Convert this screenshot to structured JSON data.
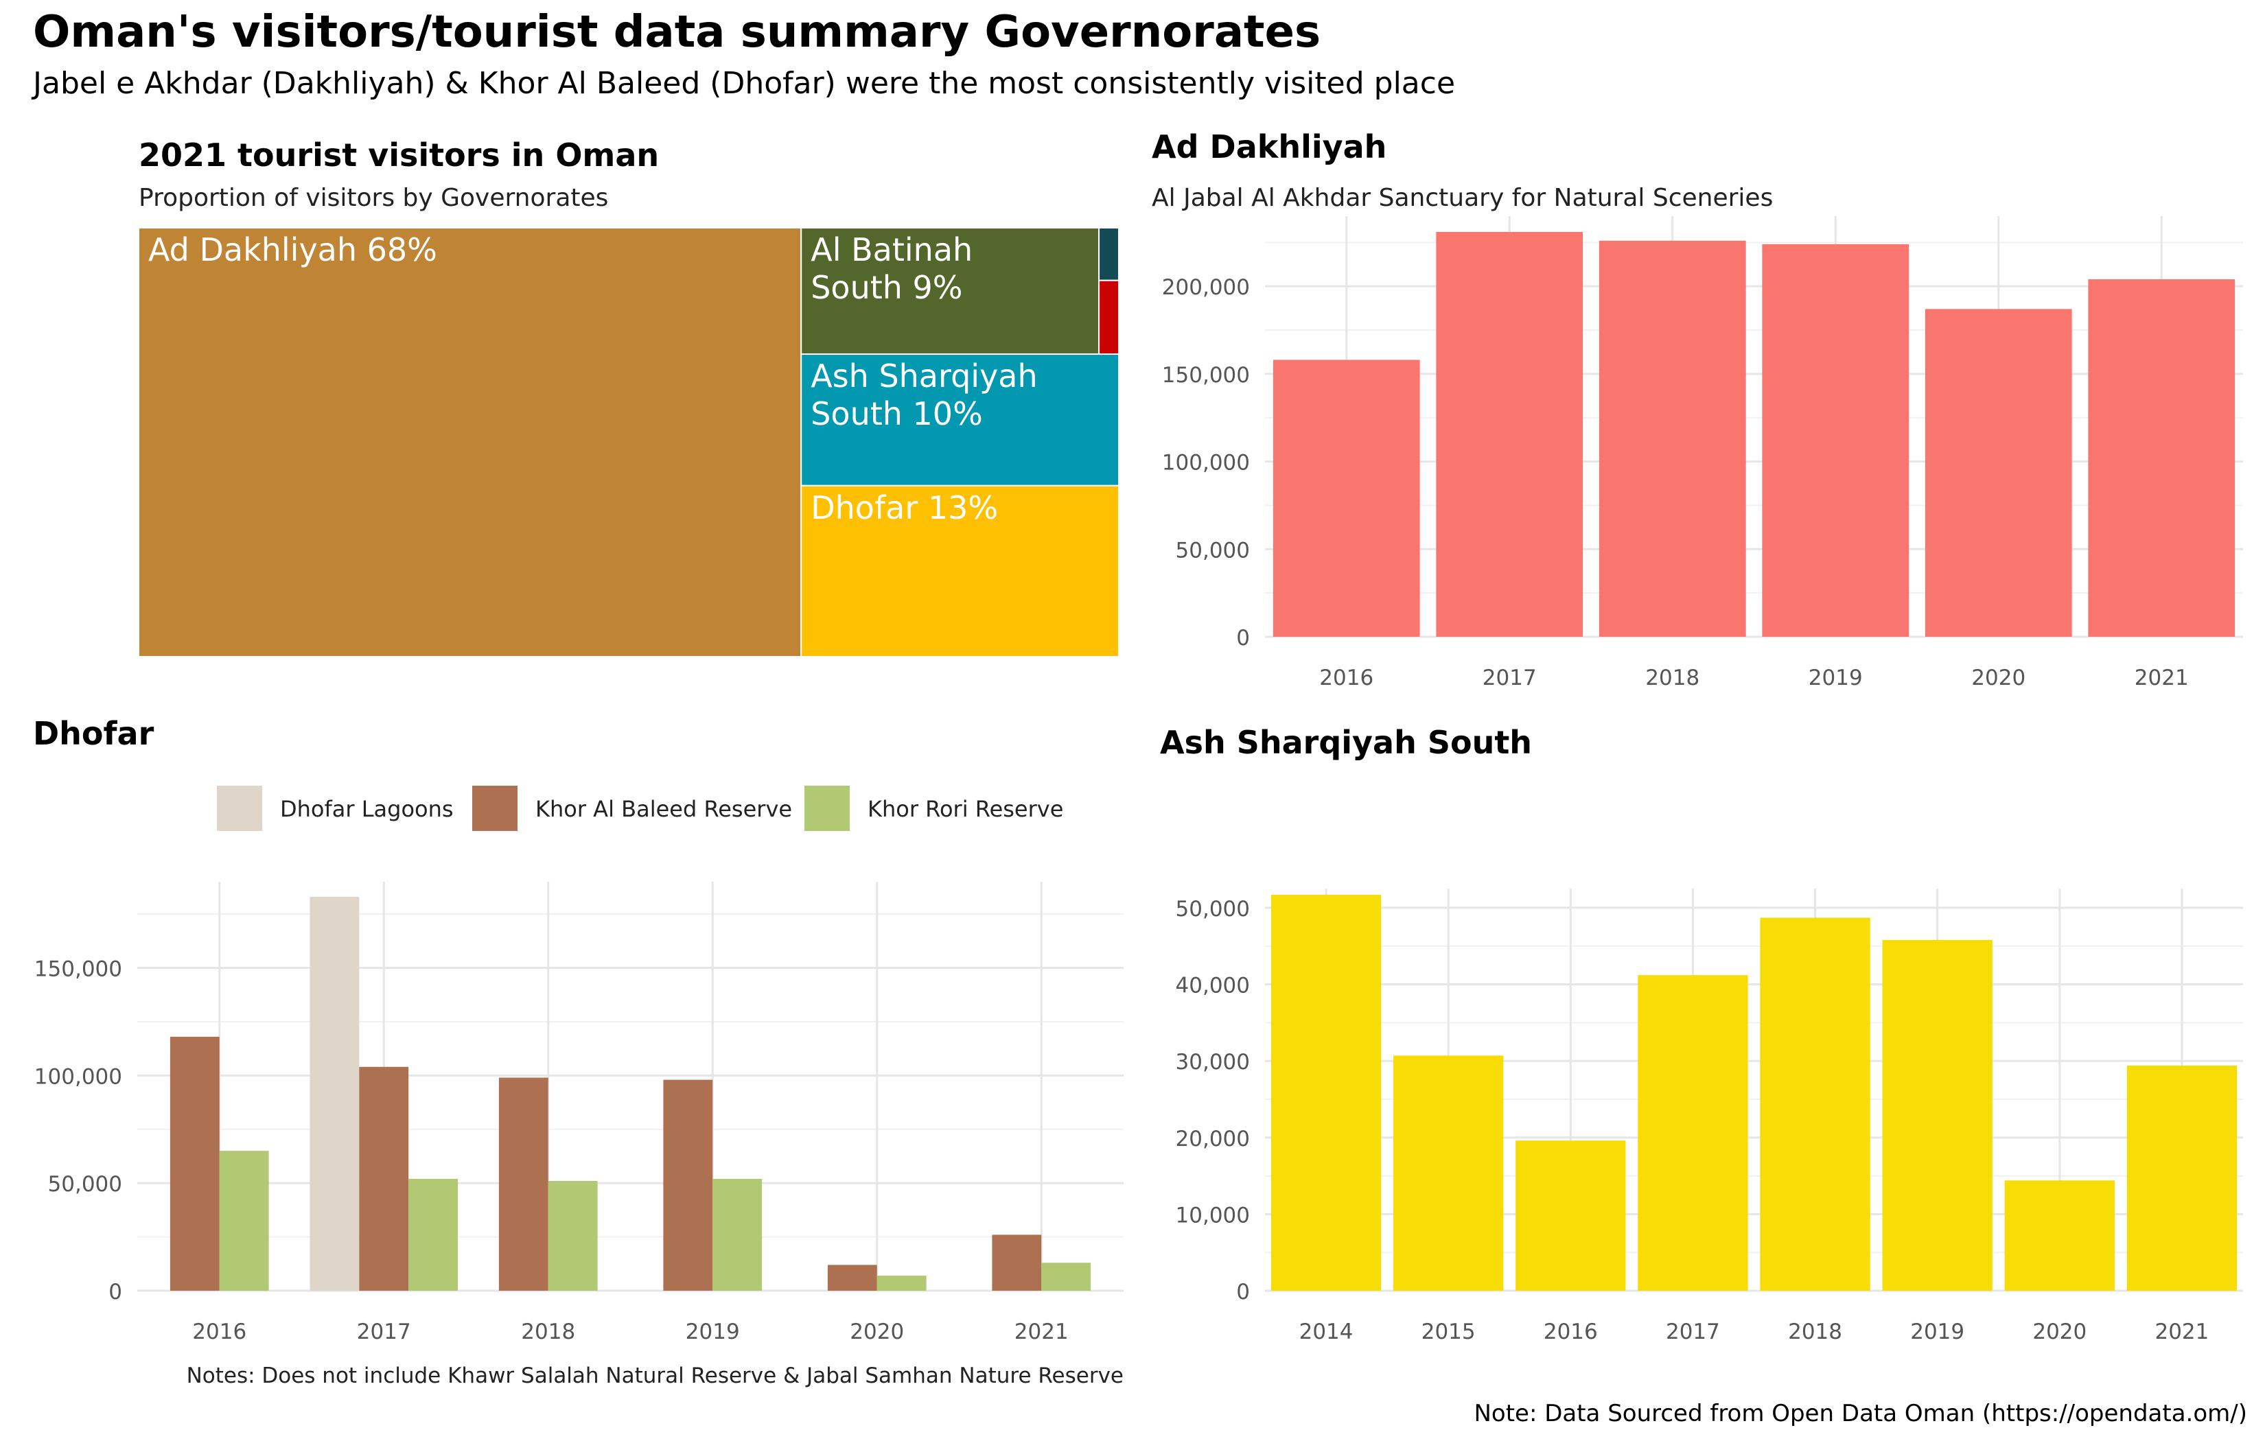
{
  "title": "Oman's visitors/tourist data summary Governorates",
  "subtitle": "Jabel e Akhdar (Dakhliyah) & Khor Al Baleed (Dhofar) were the most consistently visited place",
  "caption": "Note: Data Sourced from Open Data Oman (https://opendata.om/)",
  "chart_data": [
    {
      "type": "treemap",
      "title": "2021 tourist visitors in Oman",
      "subtitle": "Proportion of visitors by Governorates",
      "items": [
        {
          "label": "Ad Dakhliyah 68%",
          "value": 68,
          "color": "#BF8434"
        },
        {
          "label": "Al Batinah South 9%",
          "label_lines": [
            "Al Batinah",
            "South 9%"
          ],
          "value": 9,
          "color": "#53672C"
        },
        {
          "label": "Ash Sharqiyah South 10%",
          "label_lines": [
            "Ash Sharqiyah",
            "South 10%"
          ],
          "value": 10,
          "color": "#0299B0"
        },
        {
          "label": "Dhofar 13%",
          "value": 13,
          "color": "#FEC001"
        },
        {
          "label": "",
          "value": 0.25,
          "color": "#124B56"
        },
        {
          "label": "",
          "value": 0.35,
          "color": "#CC0202"
        }
      ]
    },
    {
      "type": "bar",
      "title": "Ad Dakhliyah",
      "subtitle": "Al Jabal Al Akhdar Sanctuary for Natural Sceneries",
      "categories": [
        "2016",
        "2017",
        "2018",
        "2019",
        "2020",
        "2021"
      ],
      "values": [
        158000,
        231000,
        226000,
        224000,
        187000,
        204000
      ],
      "ylim": [
        0,
        240000
      ],
      "yticks": [
        0,
        50000,
        100000,
        150000,
        200000
      ],
      "ytick_labels": [
        "0",
        "50,000",
        "100,000",
        "150,000",
        "200,000"
      ],
      "color": "#F8766D",
      "grid": true
    },
    {
      "type": "bar",
      "title": "Dhofar",
      "categories": [
        "2016",
        "2017",
        "2018",
        "2019",
        "2020",
        "2021"
      ],
      "series": [
        {
          "name": "Dhofar Lagoons",
          "color": "#DFD5C8",
          "values": [
            null,
            183000,
            null,
            null,
            null,
            null
          ]
        },
        {
          "name": "Khor Al Baleed Reserve",
          "color": "#AD7152",
          "values": [
            118000,
            104000,
            99000,
            98000,
            12000,
            26000
          ]
        },
        {
          "name": "Khor Rori Reserve",
          "color": "#B0C972",
          "values": [
            65000,
            52000,
            51000,
            52000,
            7000,
            13000
          ]
        }
      ],
      "ylim": [
        0,
        190000
      ],
      "yticks": [
        0,
        50000,
        100000,
        150000
      ],
      "ytick_labels": [
        "0",
        "50,000",
        "100,000",
        "150,000"
      ],
      "legend_position": "top",
      "caption": "Notes: Does not include Khawr Salalah Natural Reserve & Jabal Samhan Nature Reserve",
      "grid": true
    },
    {
      "type": "bar",
      "title": "Ash Sharqiyah South",
      "categories": [
        "2014",
        "2015",
        "2016",
        "2017",
        "2018",
        "2019",
        "2020",
        "2021"
      ],
      "values": [
        51700,
        30700,
        19600,
        41200,
        48700,
        45800,
        14400,
        29400
      ],
      "ylim": [
        0,
        52500
      ],
      "yticks": [
        0,
        10000,
        20000,
        30000,
        40000,
        50000
      ],
      "ytick_labels": [
        "0",
        "10,000",
        "20,000",
        "30,000",
        "40,000",
        "50,000"
      ],
      "color": "#F7DC05",
      "grid": true
    }
  ]
}
